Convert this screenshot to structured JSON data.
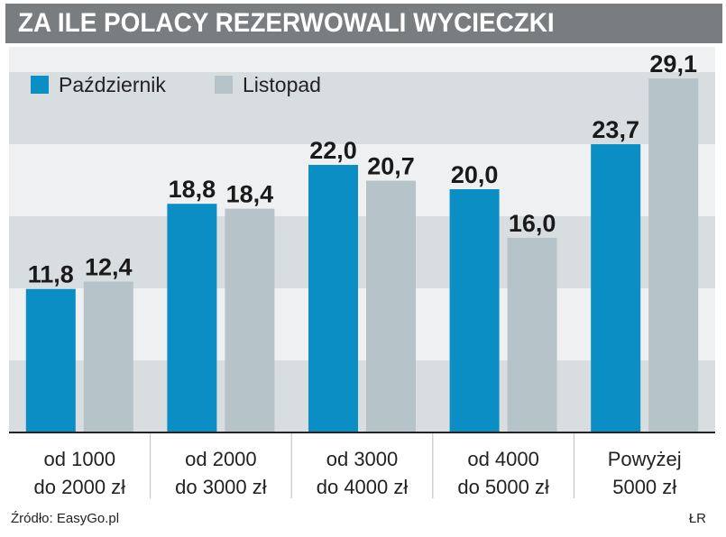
{
  "header": {
    "title": "ZA ILE POLACY REZERWOWALI WYCIECZKI"
  },
  "colors": {
    "series1": "#0a8ec4",
    "series2": "#b6c3c9",
    "band_dark": "#d8dde0",
    "band_light": "#eef0f1",
    "axis": "#222222"
  },
  "chart_data": {
    "type": "bar",
    "title": "ZA ILE POLACY REZERWOWALI WYCIECZKI",
    "categories": [
      [
        "od 1000",
        "do 2000 zł"
      ],
      [
        "od 2000",
        "do 3000 zł"
      ],
      [
        "od 3000",
        "do 4000 zł"
      ],
      [
        "od 4000",
        "do 5000 zł"
      ],
      [
        "Powyżej",
        "5000 zł"
      ]
    ],
    "series": [
      {
        "name": "Październik",
        "values": [
          11.8,
          18.8,
          22.0,
          20.0,
          23.7
        ],
        "labels": [
          "11,8",
          "18,8",
          "22,0",
          "20,0",
          "23,7"
        ]
      },
      {
        "name": "Listopad",
        "values": [
          12.4,
          18.4,
          20.7,
          16.0,
          29.1
        ],
        "labels": [
          "12,4",
          "18,4",
          "20,7",
          "16,0",
          "29,1"
        ]
      }
    ],
    "ylim": [
      0,
      30
    ],
    "grid_bands": true,
    "legend": "top-left",
    "xlabel": "",
    "ylabel": ""
  },
  "footer": {
    "source": "Źródło: EasyGo.pl",
    "credit": "ŁR"
  }
}
